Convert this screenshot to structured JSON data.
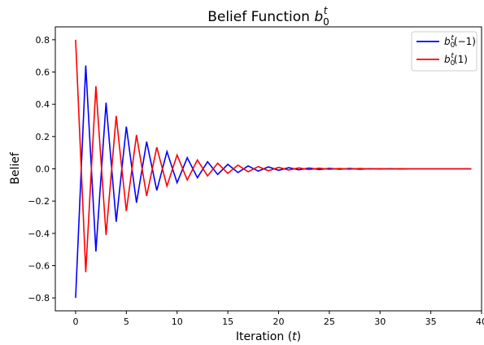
{
  "chart_data": {
    "type": "line",
    "title": "Belief Function ",
    "title_math": "b",
    "title_sub": "0",
    "title_sup": "t",
    "xlabel_prefix": "Iteration (",
    "xlabel_var": "t",
    "xlabel_suffix": ")",
    "ylabel": "Belief",
    "xlim": [
      -2,
      40
    ],
    "ylim": [
      -0.88,
      0.88
    ],
    "xticks": [
      0,
      5,
      10,
      15,
      20,
      25,
      30,
      35,
      40
    ],
    "xtick_labels": [
      "0",
      "5",
      "10",
      "15",
      "20",
      "25",
      "30",
      "35",
      "40"
    ],
    "yticks": [
      -0.8,
      -0.6,
      -0.4,
      -0.2,
      0.0,
      0.2,
      0.4,
      0.6,
      0.8
    ],
    "ytick_labels": [
      "−0.8",
      "−0.6",
      "−0.4",
      "−0.2",
      "0.0",
      "0.2",
      "0.4",
      "0.6",
      "0.8"
    ],
    "grid": false,
    "legend_position": "top-right",
    "x": [
      0,
      1,
      2,
      3,
      4,
      5,
      6,
      7,
      8,
      9,
      10,
      11,
      12,
      13,
      14,
      15,
      16,
      17,
      18,
      19,
      20,
      21,
      22,
      23,
      24,
      25,
      26,
      27,
      28,
      29,
      30,
      31,
      32,
      33,
      34,
      35,
      36,
      37,
      38,
      39
    ],
    "series": [
      {
        "name": "b0t(-1)",
        "legend_main": "b",
        "legend_sub": "0",
        "legend_sup": "t",
        "legend_arg": "(−1)",
        "color": "#0000ff",
        "values": [
          -0.8,
          0.64,
          -0.512,
          0.41,
          -0.328,
          0.262,
          -0.21,
          0.168,
          -0.134,
          0.107,
          -0.086,
          0.069,
          -0.055,
          0.044,
          -0.035,
          0.028,
          -0.023,
          0.018,
          -0.014,
          0.012,
          -0.009,
          0.007,
          -0.006,
          0.005,
          -0.004,
          0.003,
          -0.002,
          0.002,
          -0.002,
          0.001,
          -0.001,
          0.001,
          -0.001,
          0.0,
          0.0,
          0.0,
          0.0,
          0.0,
          0.0,
          0.0
        ]
      },
      {
        "name": "b0t(1)",
        "legend_main": "b",
        "legend_sub": "0",
        "legend_sup": "t",
        "legend_arg": "(1)",
        "color": "#ff0000",
        "values": [
          0.8,
          -0.64,
          0.512,
          -0.41,
          0.328,
          -0.262,
          0.21,
          -0.168,
          0.134,
          -0.107,
          0.086,
          -0.069,
          0.055,
          -0.044,
          0.035,
          -0.028,
          0.023,
          -0.018,
          0.014,
          -0.012,
          0.009,
          -0.007,
          0.006,
          -0.005,
          0.004,
          -0.003,
          0.002,
          -0.002,
          0.002,
          -0.001,
          0.001,
          -0.001,
          0.001,
          0.0,
          0.0,
          0.0,
          0.0,
          0.0,
          0.0,
          0.0
        ]
      }
    ]
  }
}
